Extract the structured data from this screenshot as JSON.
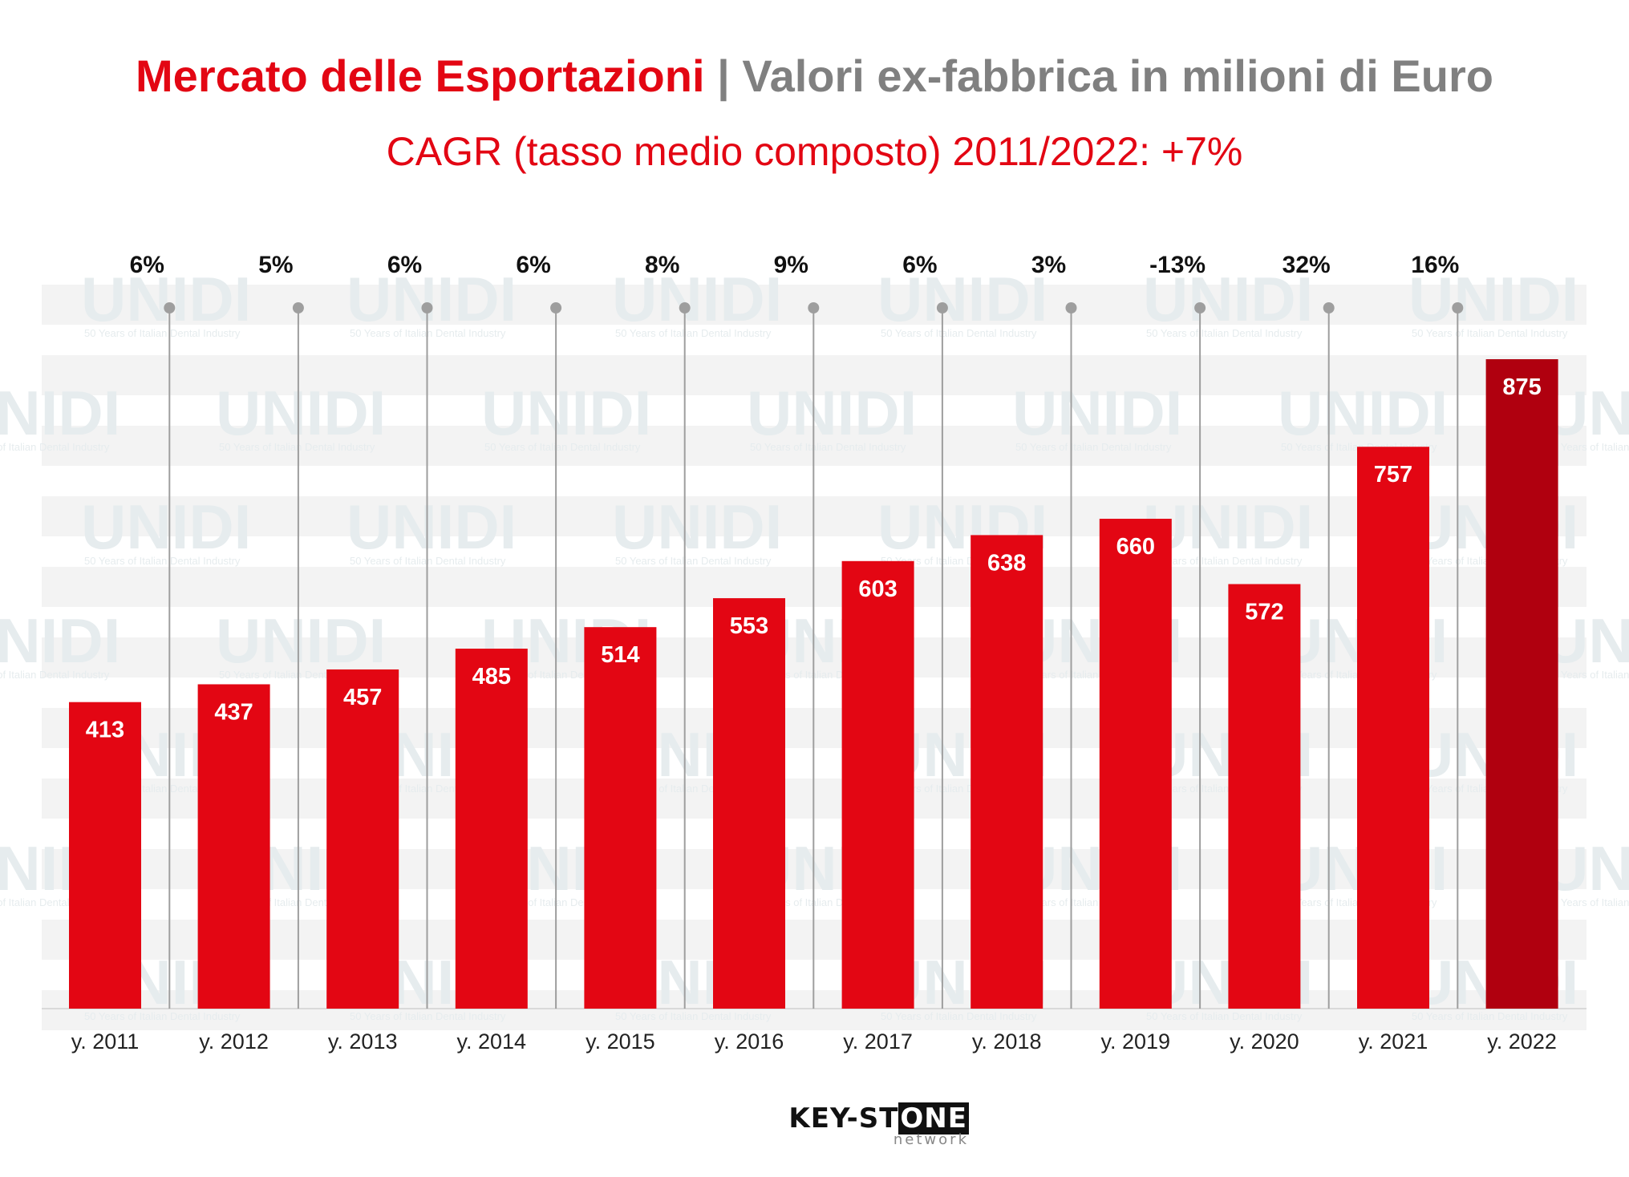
{
  "title": {
    "part1": "Mercato delle Esportazioni",
    "separator": "|",
    "part2": "Valori ex-fabbrica in milioni di Euro"
  },
  "subtitle": "CAGR (tasso medio composto) 2011/2022: +7%",
  "watermark": {
    "logo_text": "UNIDI",
    "tagline": "50 Years of Italian Dental Industry"
  },
  "logo": {
    "main_a": "KEY-ST",
    "main_b": "ONE",
    "sub": "network"
  },
  "colors": {
    "bar": "#e30613",
    "bar_last": "#b0000f",
    "title_red": "#e30613",
    "title_grey": "#808080",
    "connector": "#9e9e9e"
  },
  "chart_data": {
    "type": "bar",
    "categories": [
      "y. 2011",
      "y. 2012",
      "y. 2013",
      "y. 2014",
      "y. 2015",
      "y. 2016",
      "y. 2017",
      "y. 2018",
      "y. 2019",
      "y. 2020",
      "y. 2021",
      "y. 2022"
    ],
    "values": [
      413,
      437,
      457,
      485,
      514,
      553,
      603,
      638,
      660,
      572,
      757,
      875
    ],
    "value_labels": [
      "413",
      "437",
      "457",
      "485",
      "514",
      "553",
      "603",
      "638",
      "660",
      "572",
      "757",
      "875"
    ],
    "growth_labels": [
      "6%",
      "5%",
      "6%",
      "6%",
      "8%",
      "9%",
      "6%",
      "3%",
      "-13%",
      "32%",
      "16%"
    ],
    "title": "Mercato delle Esportazioni | Valori ex-fabbrica in milioni di Euro",
    "xlabel": "",
    "ylabel": "",
    "ylim": [
      0,
      1000
    ],
    "grid": false
  }
}
